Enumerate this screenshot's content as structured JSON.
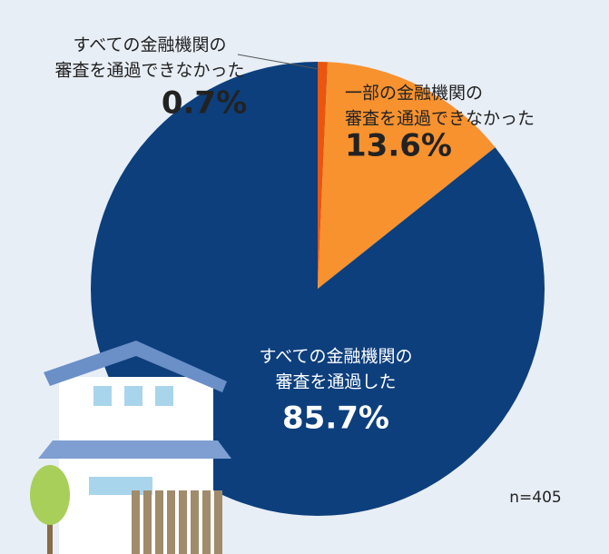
{
  "chart_data": {
    "type": "pie",
    "categories": [
      [
        "すべての金融機関の",
        "審査を通過できなかった"
      ],
      [
        "一部の金融機関の",
        "審査を通過できなかった"
      ],
      [
        "すべての金融機関の",
        "審査を通過した"
      ]
    ],
    "values": [
      0.7,
      13.6,
      85.7
    ],
    "value_labels": [
      "0.7%",
      "13.6%",
      "85.7%"
    ],
    "colors": [
      "#e8560f",
      "#f7922f",
      "#0d3f7d"
    ],
    "note": "n=405"
  }
}
